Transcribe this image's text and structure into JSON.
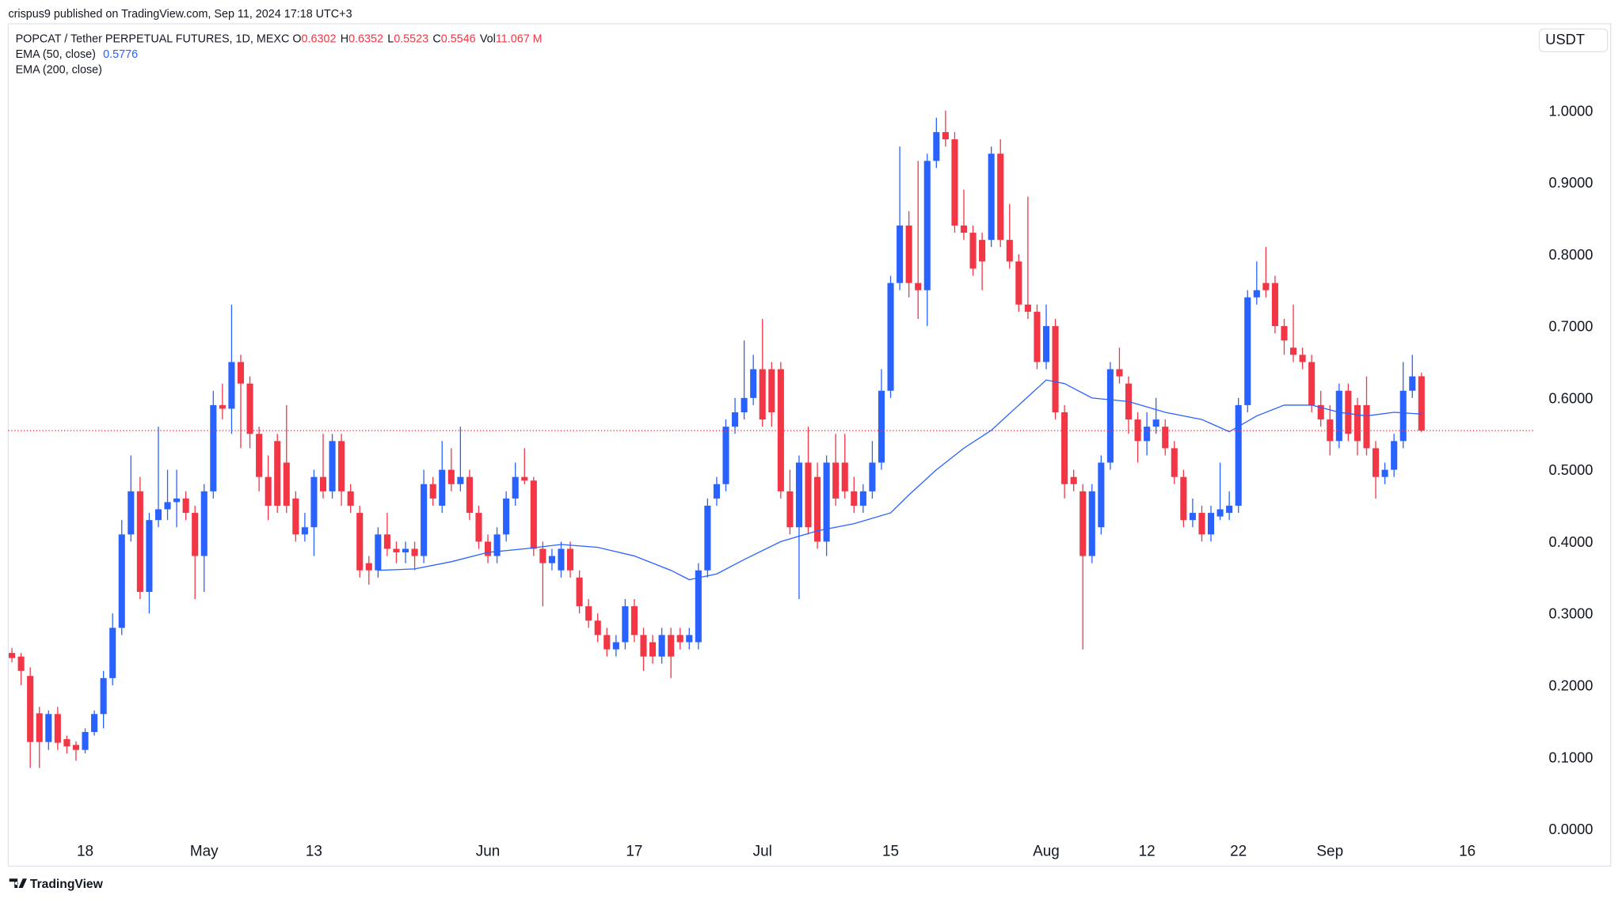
{
  "header": {
    "publisher": "crispus9 published on TradingView.com, Sep 11, 2024 17:18 UTC+3"
  },
  "footer": {
    "brand": "TradingView"
  },
  "chart_data": {
    "type": "candlestick",
    "symbol": "POPCAT / Tether PERPETUAL FUTURES, 1D, MEXC",
    "legend_ohlc": [
      {
        "label": "O",
        "value": 0.6302
      },
      {
        "label": "H",
        "value": 0.6352
      },
      {
        "label": "L",
        "value": 0.5523
      },
      {
        "label": "C",
        "value": 0.5546
      },
      {
        "label": "Vol",
        "value": "11.067 M"
      }
    ],
    "currency": "USDT",
    "up_color": "#2962ff",
    "down_color": "#f23645",
    "candles": {
      "open": [
        0.245,
        0.24,
        0.213,
        0.161,
        0.121,
        0.16,
        0.125,
        0.117,
        0.11,
        0.135,
        0.16,
        0.21,
        0.28,
        0.41,
        0.47,
        0.33,
        0.43,
        0.445,
        0.455,
        0.46,
        0.44,
        0.38,
        0.47,
        0.59,
        0.585,
        0.65,
        0.62,
        0.55,
        0.49,
        0.54,
        0.51,
        0.46,
        0.41,
        0.42,
        0.49,
        0.47,
        0.54,
        0.47,
        0.44,
        0.37,
        0.36,
        0.41,
        0.39,
        0.385,
        0.39,
        0.38,
        0.48,
        0.45,
        0.5,
        0.48,
        0.49,
        0.44,
        0.4,
        0.38,
        0.41,
        0.46,
        0.49,
        0.485,
        0.39,
        0.37,
        0.36,
        0.39,
        0.35,
        0.31,
        0.29,
        0.27,
        0.25,
        0.26,
        0.31,
        0.27,
        0.26,
        0.24,
        0.27,
        0.27,
        0.26,
        0.26,
        0.36,
        0.46,
        0.48,
        0.56,
        0.58,
        0.6,
        0.64,
        0.64,
        0.64,
        0.47,
        0.42,
        0.51,
        0.49,
        0.4,
        0.51,
        0.51,
        0.47,
        0.45,
        0.47,
        0.51,
        0.61,
        0.76,
        0.84,
        0.76,
        0.75,
        0.93,
        0.97,
        0.96,
        0.84,
        0.83,
        0.82,
        0.82,
        0.94,
        0.82,
        0.79,
        0.73,
        0.72,
        0.65,
        0.7,
        0.58,
        0.49,
        0.47,
        0.38,
        0.42,
        0.51,
        0.64,
        0.62,
        0.57,
        0.54,
        0.56,
        0.56,
        0.53,
        0.49,
        0.43,
        0.44,
        0.41,
        0.435,
        0.44,
        0.45,
        0.59,
        0.74,
        0.76,
        0.76,
        0.7,
        0.67,
        0.66,
        0.65,
        0.59,
        0.57,
        0.54,
        0.61,
        0.59,
        0.59,
        0.53,
        0.49,
        0.5,
        0.54,
        0.61,
        0.6302
      ],
      "high": [
        0.252,
        0.245,
        0.225,
        0.17,
        0.165,
        0.17,
        0.13,
        0.122,
        0.14,
        0.165,
        0.22,
        0.3,
        0.43,
        0.52,
        0.49,
        0.44,
        0.56,
        0.5,
        0.5,
        0.47,
        0.45,
        0.48,
        0.61,
        0.62,
        0.73,
        0.66,
        0.63,
        0.56,
        0.52,
        0.55,
        0.59,
        0.47,
        0.44,
        0.5,
        0.55,
        0.55,
        0.55,
        0.48,
        0.45,
        0.38,
        0.42,
        0.44,
        0.4,
        0.4,
        0.4,
        0.5,
        0.49,
        0.54,
        0.53,
        0.56,
        0.5,
        0.45,
        0.41,
        0.42,
        0.47,
        0.51,
        0.53,
        0.49,
        0.4,
        0.39,
        0.4,
        0.4,
        0.36,
        0.32,
        0.3,
        0.28,
        0.27,
        0.32,
        0.32,
        0.28,
        0.27,
        0.28,
        0.28,
        0.28,
        0.28,
        0.37,
        0.46,
        0.49,
        0.57,
        0.6,
        0.68,
        0.66,
        0.71,
        0.65,
        0.65,
        0.5,
        0.52,
        0.56,
        0.51,
        0.52,
        0.55,
        0.55,
        0.49,
        0.48,
        0.54,
        0.64,
        0.77,
        0.95,
        0.86,
        0.93,
        0.94,
        0.99,
        1.0,
        0.97,
        0.89,
        0.84,
        0.83,
        0.95,
        0.96,
        0.87,
        0.8,
        0.88,
        0.73,
        0.73,
        0.71,
        0.59,
        0.5,
        0.48,
        0.48,
        0.52,
        0.65,
        0.67,
        0.63,
        0.58,
        0.58,
        0.6,
        0.57,
        0.54,
        0.5,
        0.46,
        0.45,
        0.45,
        0.51,
        0.47,
        0.6,
        0.75,
        0.79,
        0.81,
        0.77,
        0.71,
        0.73,
        0.67,
        0.66,
        0.61,
        0.59,
        0.62,
        0.62,
        0.6,
        0.63,
        0.54,
        0.51,
        0.55,
        0.65,
        0.66,
        0.6352
      ],
      "low": [
        0.232,
        0.2,
        0.085,
        0.085,
        0.11,
        0.11,
        0.105,
        0.095,
        0.105,
        0.13,
        0.14,
        0.2,
        0.27,
        0.4,
        0.32,
        0.3,
        0.42,
        0.43,
        0.42,
        0.43,
        0.32,
        0.33,
        0.46,
        0.57,
        0.55,
        0.53,
        0.53,
        0.47,
        0.43,
        0.44,
        0.44,
        0.4,
        0.4,
        0.38,
        0.46,
        0.46,
        0.45,
        0.44,
        0.35,
        0.34,
        0.35,
        0.38,
        0.37,
        0.37,
        0.36,
        0.37,
        0.45,
        0.44,
        0.47,
        0.47,
        0.43,
        0.39,
        0.37,
        0.37,
        0.4,
        0.45,
        0.48,
        0.38,
        0.31,
        0.36,
        0.35,
        0.35,
        0.3,
        0.28,
        0.26,
        0.24,
        0.24,
        0.25,
        0.26,
        0.22,
        0.23,
        0.23,
        0.21,
        0.25,
        0.25,
        0.25,
        0.35,
        0.45,
        0.47,
        0.55,
        0.57,
        0.59,
        0.56,
        0.56,
        0.46,
        0.41,
        0.32,
        0.41,
        0.39,
        0.38,
        0.45,
        0.46,
        0.44,
        0.44,
        0.46,
        0.5,
        0.6,
        0.75,
        0.74,
        0.71,
        0.7,
        0.92,
        0.95,
        0.83,
        0.82,
        0.77,
        0.75,
        0.81,
        0.81,
        0.78,
        0.72,
        0.71,
        0.64,
        0.64,
        0.57,
        0.46,
        0.47,
        0.25,
        0.37,
        0.41,
        0.5,
        0.62,
        0.55,
        0.51,
        0.52,
        0.55,
        0.52,
        0.48,
        0.42,
        0.42,
        0.4,
        0.4,
        0.43,
        0.43,
        0.44,
        0.58,
        0.73,
        0.74,
        0.69,
        0.66,
        0.65,
        0.64,
        0.58,
        0.56,
        0.52,
        0.53,
        0.54,
        0.52,
        0.52,
        0.46,
        0.48,
        0.49,
        0.53,
        0.6,
        0.5523
      ],
      "close": [
        0.238,
        0.22,
        0.121,
        0.121,
        0.16,
        0.12,
        0.115,
        0.11,
        0.135,
        0.16,
        0.21,
        0.28,
        0.41,
        0.47,
        0.33,
        0.43,
        0.445,
        0.455,
        0.46,
        0.44,
        0.38,
        0.47,
        0.59,
        0.585,
        0.65,
        0.62,
        0.55,
        0.49,
        0.45,
        0.45,
        0.45,
        0.41,
        0.42,
        0.49,
        0.47,
        0.54,
        0.47,
        0.45,
        0.36,
        0.36,
        0.41,
        0.39,
        0.385,
        0.39,
        0.38,
        0.48,
        0.46,
        0.5,
        0.48,
        0.49,
        0.44,
        0.4,
        0.38,
        0.41,
        0.46,
        0.49,
        0.485,
        0.39,
        0.37,
        0.38,
        0.39,
        0.36,
        0.31,
        0.29,
        0.27,
        0.25,
        0.26,
        0.31,
        0.27,
        0.24,
        0.24,
        0.27,
        0.24,
        0.26,
        0.27,
        0.36,
        0.45,
        0.48,
        0.56,
        0.58,
        0.6,
        0.64,
        0.57,
        0.58,
        0.47,
        0.42,
        0.51,
        0.42,
        0.4,
        0.51,
        0.46,
        0.47,
        0.45,
        0.47,
        0.51,
        0.61,
        0.76,
        0.84,
        0.76,
        0.75,
        0.93,
        0.97,
        0.96,
        0.84,
        0.83,
        0.78,
        0.79,
        0.94,
        0.82,
        0.79,
        0.73,
        0.72,
        0.65,
        0.7,
        0.58,
        0.48,
        0.48,
        0.38,
        0.47,
        0.51,
        0.64,
        0.63,
        0.57,
        0.54,
        0.56,
        0.57,
        0.53,
        0.49,
        0.43,
        0.44,
        0.41,
        0.44,
        0.445,
        0.45,
        0.59,
        0.74,
        0.75,
        0.75,
        0.7,
        0.68,
        0.66,
        0.65,
        0.59,
        0.57,
        0.54,
        0.61,
        0.55,
        0.54,
        0.53,
        0.49,
        0.5,
        0.54,
        0.61,
        0.63,
        0.5546
      ]
    },
    "indicators": [
      {
        "name": "EMA (50, close)",
        "last": 0.5776,
        "color": "#2962ff",
        "x": [
          40,
          44,
          48,
          52,
          56,
          60,
          64,
          68,
          72,
          74,
          77,
          80,
          84,
          88,
          92,
          96,
          98,
          101,
          104,
          107,
          110,
          113,
          115,
          118,
          122,
          126,
          130,
          133,
          136,
          139,
          142,
          145,
          148,
          151,
          154
        ],
        "values": [
          0.36,
          0.362,
          0.372,
          0.385,
          0.39,
          0.396,
          0.392,
          0.38,
          0.36,
          0.347,
          0.355,
          0.375,
          0.4,
          0.415,
          0.425,
          0.44,
          0.465,
          0.5,
          0.53,
          0.555,
          0.59,
          0.625,
          0.62,
          0.6,
          0.595,
          0.58,
          0.57,
          0.553,
          0.575,
          0.59,
          0.59,
          0.58,
          0.575,
          0.58,
          0.5776
        ]
      },
      {
        "name": "EMA (200, close)"
      }
    ],
    "xlim": [
      -0.4,
      166.3
    ],
    "xticks": [
      {
        "value": 8,
        "label": "18"
      },
      {
        "value": 21,
        "label": "May"
      },
      {
        "value": 33,
        "label": "13"
      },
      {
        "value": 52,
        "label": "Jun"
      },
      {
        "value": 68,
        "label": "17"
      },
      {
        "value": 82,
        "label": "Jul"
      },
      {
        "value": 96,
        "label": "15"
      },
      {
        "value": 113,
        "label": "Aug"
      },
      {
        "value": 124,
        "label": "12"
      },
      {
        "value": 134,
        "label": "22"
      },
      {
        "value": 144,
        "label": "Sep"
      },
      {
        "value": 159,
        "label": "16"
      }
    ],
    "ylim": [
      -0.0518,
      1.1194
    ],
    "yticks": [
      {
        "value": 0,
        "label": "0.0000"
      },
      {
        "value": 0.1,
        "label": "0.1000"
      },
      {
        "value": 0.2,
        "label": "0.2000"
      },
      {
        "value": 0.3,
        "label": "0.3000"
      },
      {
        "value": 0.4,
        "label": "0.4000"
      },
      {
        "value": 0.5,
        "label": "0.5000"
      },
      {
        "value": 0.6,
        "label": "0.6000"
      },
      {
        "value": 0.7,
        "label": "0.7000"
      },
      {
        "value": 0.8,
        "label": "0.8000"
      },
      {
        "value": 0.9,
        "label": "0.9000"
      },
      {
        "value": 1,
        "label": "1.0000"
      }
    ],
    "grid": false
  }
}
